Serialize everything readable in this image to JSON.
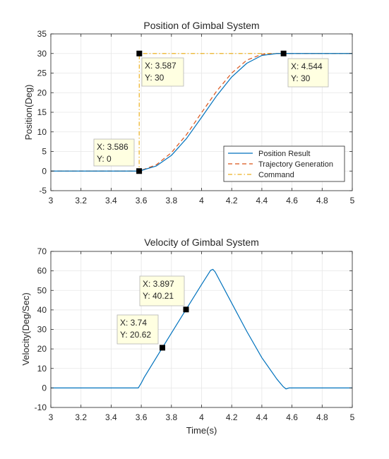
{
  "chart_data": [
    {
      "type": "line",
      "title": "Position of Gimbal System",
      "xlabel": "",
      "ylabel": "Position(Deg)",
      "xlim": [
        3,
        5
      ],
      "ylim": [
        -5,
        35
      ],
      "xticks": [
        3,
        3.2,
        3.4,
        3.6,
        3.8,
        4,
        4.2,
        4.4,
        4.6,
        4.8,
        5
      ],
      "xtick_labels": [
        "3",
        "3.2",
        "3.4",
        "3.6",
        "3.8",
        "4",
        "4.2",
        "4.4",
        "4.6",
        "4.8",
        "5"
      ],
      "yticks": [
        -5,
        0,
        5,
        10,
        15,
        20,
        25,
        30,
        35
      ],
      "ytick_labels": [
        "-5",
        "0",
        "5",
        "10",
        "15",
        "20",
        "25",
        "30",
        "35"
      ],
      "grid": true,
      "legend": "bottom-right",
      "series": [
        {
          "name": "Position Result",
          "color": "#0072BD",
          "style": "solid",
          "x": [
            3.0,
            3.586,
            3.7,
            3.8,
            3.9,
            4.0,
            4.1,
            4.2,
            4.3,
            4.4,
            4.5,
            4.544,
            5.0
          ],
          "y": [
            0,
            0,
            1.3,
            4.0,
            8.3,
            13.7,
            19.2,
            24.0,
            27.5,
            29.5,
            30.0,
            30.0,
            30.0
          ]
        },
        {
          "name": "Trajectory Generation",
          "color": "#D95319",
          "style": "dashed",
          "x": [
            3.0,
            3.586,
            3.7,
            3.8,
            3.9,
            4.0,
            4.1,
            4.2,
            4.3,
            4.4,
            4.5,
            4.544,
            5.0
          ],
          "y": [
            0,
            0,
            1.6,
            4.7,
            9.3,
            14.9,
            20.4,
            25.0,
            28.3,
            29.8,
            30.0,
            30.0,
            30.0
          ]
        },
        {
          "name": "Command",
          "color": "#EDB120",
          "style": "dashdot",
          "x": [
            3.0,
            3.586,
            3.587,
            5.0
          ],
          "y": [
            0,
            0,
            30,
            30
          ]
        }
      ],
      "datatips": [
        {
          "x": 3.586,
          "y": 0,
          "label_x": "X: 3.586",
          "label_y": "Y: 0"
        },
        {
          "x": 3.587,
          "y": 30,
          "label_x": "X: 3.587",
          "label_y": "Y: 30"
        },
        {
          "x": 4.544,
          "y": 30,
          "label_x": "X: 4.544",
          "label_y": "Y: 30"
        }
      ]
    },
    {
      "type": "line",
      "title": "Velocity of Gimbal System",
      "xlabel": "Time(s)",
      "ylabel": "Velocity(Deg/Sec)",
      "xlim": [
        3,
        5
      ],
      "ylim": [
        -10,
        70
      ],
      "xticks": [
        3,
        3.2,
        3.4,
        3.6,
        3.8,
        4,
        4.2,
        4.4,
        4.6,
        4.8,
        5
      ],
      "xtick_labels": [
        "3",
        "3.2",
        "3.4",
        "3.6",
        "3.8",
        "4",
        "4.2",
        "4.4",
        "4.6",
        "4.8",
        "5"
      ],
      "yticks": [
        -10,
        0,
        10,
        20,
        30,
        40,
        50,
        60,
        70
      ],
      "ytick_labels": [
        "-10",
        "0",
        "10",
        "20",
        "30",
        "40",
        "50",
        "60",
        "70"
      ],
      "grid": true,
      "series": [
        {
          "name": "",
          "color": "#0072BD",
          "style": "solid",
          "x": [
            3.0,
            3.58,
            3.6,
            3.62,
            3.74,
            3.897,
            4.0,
            4.06,
            4.075,
            4.09,
            4.2,
            4.3,
            4.4,
            4.5,
            4.54,
            4.56,
            4.58,
            5.0
          ],
          "y": [
            0,
            0,
            2.5,
            5.5,
            20.62,
            40.21,
            53.0,
            60.3,
            60.8,
            59.5,
            43.5,
            29.0,
            15.5,
            4.5,
            0.8,
            -0.5,
            0,
            0
          ]
        }
      ],
      "datatips": [
        {
          "x": 3.74,
          "y": 20.62,
          "label_x": "X: 3.74",
          "label_y": "Y: 20.62"
        },
        {
          "x": 3.897,
          "y": 40.21,
          "label_x": "X: 3.897",
          "label_y": "Y: 40.21"
        }
      ]
    }
  ]
}
